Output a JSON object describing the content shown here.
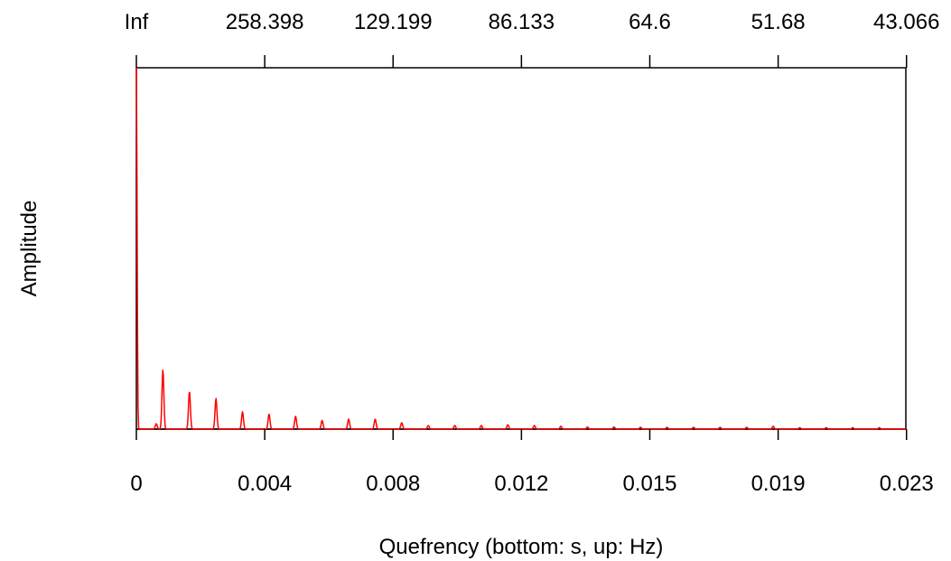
{
  "chart_data": {
    "type": "line",
    "title": "",
    "xlabel": "Quefrency (bottom: s, up: Hz)",
    "ylabel": "Amplitude",
    "xlim": [
      0,
      0.0232
    ],
    "ylim": [
      0,
      1.0
    ],
    "grid": false,
    "x_ticks_bottom": [
      {
        "value": 0,
        "label": "0"
      },
      {
        "value": 0.00387,
        "label": "0.004"
      },
      {
        "value": 0.00774,
        "label": "0.008"
      },
      {
        "value": 0.01161,
        "label": "0.012"
      },
      {
        "value": 0.01548,
        "label": "0.015"
      },
      {
        "value": 0.01935,
        "label": "0.019"
      },
      {
        "value": 0.02322,
        "label": "0.023"
      }
    ],
    "x_ticks_top": [
      {
        "value": 0,
        "label": "Inf"
      },
      {
        "value": 0.00387,
        "label": "258.398"
      },
      {
        "value": 0.00774,
        "label": "129.199"
      },
      {
        "value": 0.01161,
        "label": "86.133"
      },
      {
        "value": 0.01548,
        "label": "64.6"
      },
      {
        "value": 0.01935,
        "label": "51.68"
      },
      {
        "value": 0.02322,
        "label": "43.066"
      }
    ],
    "series": [
      {
        "color": "#ff0000",
        "peaks": [
          {
            "x": 0.0,
            "y": 1.0
          },
          {
            "x": 0.0006,
            "y": 0.015
          },
          {
            "x": 0.0008,
            "y": 0.165
          },
          {
            "x": 0.0016,
            "y": 0.105
          },
          {
            "x": 0.0024,
            "y": 0.085
          },
          {
            "x": 0.0032,
            "y": 0.048
          },
          {
            "x": 0.004,
            "y": 0.042
          },
          {
            "x": 0.0048,
            "y": 0.036
          },
          {
            "x": 0.0056,
            "y": 0.024
          },
          {
            "x": 0.0064,
            "y": 0.028
          },
          {
            "x": 0.0072,
            "y": 0.028
          },
          {
            "x": 0.008,
            "y": 0.018
          },
          {
            "x": 0.0088,
            "y": 0.01
          },
          {
            "x": 0.0096,
            "y": 0.01
          },
          {
            "x": 0.0104,
            "y": 0.01
          },
          {
            "x": 0.0112,
            "y": 0.012
          },
          {
            "x": 0.012,
            "y": 0.01
          },
          {
            "x": 0.0128,
            "y": 0.008
          },
          {
            "x": 0.0136,
            "y": 0.006
          },
          {
            "x": 0.0144,
            "y": 0.006
          },
          {
            "x": 0.0152,
            "y": 0.005
          },
          {
            "x": 0.016,
            "y": 0.005
          },
          {
            "x": 0.0168,
            "y": 0.005
          },
          {
            "x": 0.0176,
            "y": 0.005
          },
          {
            "x": 0.0184,
            "y": 0.005
          },
          {
            "x": 0.0192,
            "y": 0.008
          },
          {
            "x": 0.02,
            "y": 0.004
          },
          {
            "x": 0.0208,
            "y": 0.004
          },
          {
            "x": 0.0216,
            "y": 0.004
          },
          {
            "x": 0.0224,
            "y": 0.004
          }
        ]
      }
    ]
  }
}
